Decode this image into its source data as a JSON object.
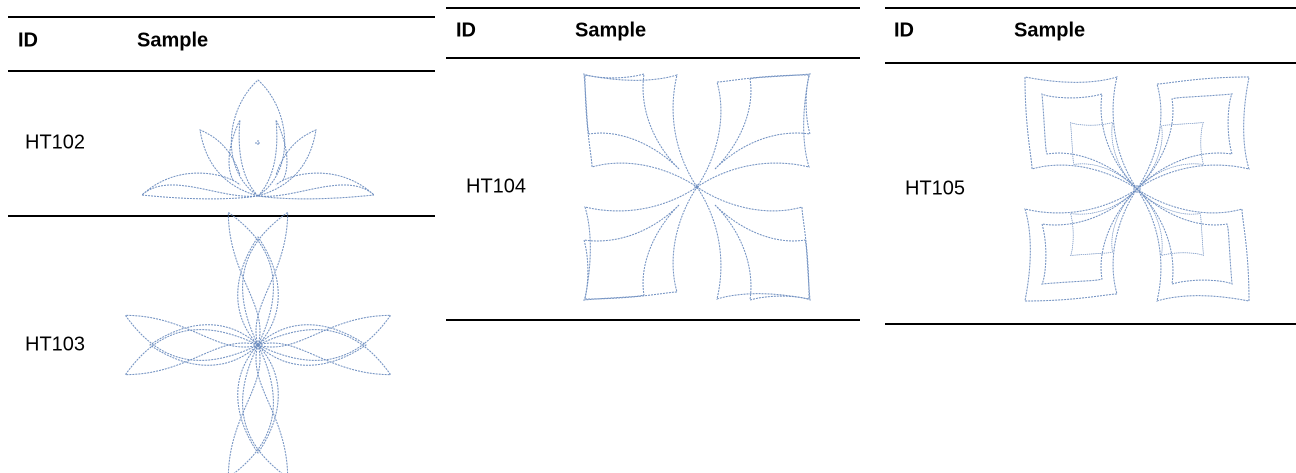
{
  "tables": [
    {
      "header": [
        "ID",
        "Sample"
      ],
      "rows": [
        {
          "id": "HT102"
        },
        {
          "id": "HT103"
        }
      ]
    },
    {
      "header": [
        "ID",
        "Sample"
      ],
      "rows": [
        {
          "id": "HT104"
        }
      ]
    },
    {
      "header": [
        "ID",
        "Sample"
      ],
      "rows": [
        {
          "id": "HT105"
        }
      ]
    }
  ]
}
